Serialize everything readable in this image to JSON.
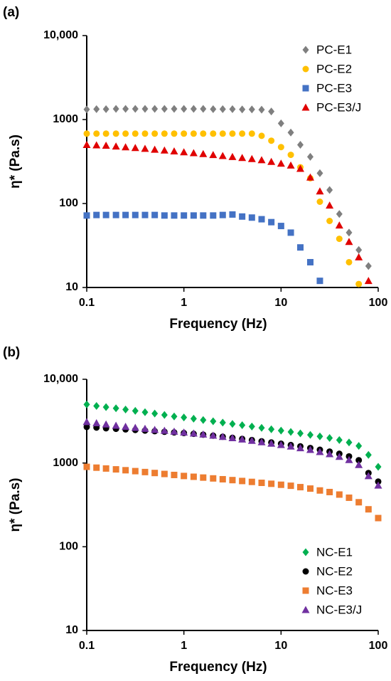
{
  "chart_data": [
    {
      "type": "scatter",
      "panel_label": "(a)",
      "xlabel": "Frequency (Hz)",
      "ylabel": "η* (Pa.s)",
      "xscale": "log",
      "yscale": "log",
      "xlim": [
        0.1,
        100
      ],
      "ylim": [
        10,
        10000
      ],
      "xticks": [
        0.1,
        1,
        10,
        100
      ],
      "yticks": [
        10,
        100,
        1000,
        {
          "value": 10000,
          "label": "10,000"
        }
      ],
      "legend": "upper right",
      "series": [
        {
          "name": "PC-E1",
          "color": "#7f7f7f",
          "marker": "diamond",
          "x": [
            0.1,
            0.126,
            0.158,
            0.2,
            0.251,
            0.316,
            0.398,
            0.501,
            0.631,
            0.794,
            1,
            1.26,
            1.58,
            2,
            2.51,
            3.16,
            3.98,
            5.01,
            6.31,
            7.94,
            10,
            12.6,
            15.8,
            20,
            25.1,
            31.6,
            39.8,
            50.1,
            63.1,
            79.4
          ],
          "values": [
            1320,
            1330,
            1330,
            1340,
            1340,
            1340,
            1340,
            1340,
            1340,
            1340,
            1340,
            1340,
            1340,
            1330,
            1330,
            1330,
            1320,
            1320,
            1310,
            1250,
            900,
            700,
            500,
            360,
            230,
            145,
            75,
            45,
            28,
            18
          ]
        },
        {
          "name": "PC-E2",
          "color": "#ffc000",
          "marker": "circle",
          "x": [
            0.1,
            0.126,
            0.158,
            0.2,
            0.251,
            0.316,
            0.398,
            0.501,
            0.631,
            0.794,
            1,
            1.26,
            1.58,
            2,
            2.51,
            3.16,
            3.98,
            5.01,
            6.31,
            7.94,
            10,
            12.6,
            15.8,
            20,
            25.1,
            31.6,
            39.8,
            50.1,
            63.1
          ],
          "values": [
            680,
            680,
            680,
            680,
            680,
            680,
            680,
            680,
            680,
            680,
            680,
            680,
            680,
            680,
            680,
            680,
            680,
            680,
            640,
            560,
            470,
            380,
            270,
            200,
            105,
            62,
            38,
            20,
            11
          ]
        },
        {
          "name": "PC-E3",
          "color": "#4472c4",
          "marker": "square",
          "x": [
            0.1,
            0.126,
            0.158,
            0.2,
            0.251,
            0.316,
            0.398,
            0.501,
            0.631,
            0.794,
            1,
            1.26,
            1.58,
            2,
            2.51,
            3.16,
            3.98,
            5.01,
            6.31,
            7.94,
            10,
            12.6,
            15.8,
            20,
            25.1
          ],
          "values": [
            72,
            73,
            73,
            73,
            73,
            73,
            73,
            73,
            72,
            72,
            72,
            72,
            72,
            72,
            73,
            74,
            70,
            68,
            65,
            60,
            54,
            45,
            30,
            20,
            12
          ]
        },
        {
          "name": "PC-E3/J",
          "color": "#e00000",
          "marker": "triangle",
          "x": [
            0.1,
            0.126,
            0.158,
            0.2,
            0.251,
            0.316,
            0.398,
            0.501,
            0.631,
            0.794,
            1,
            1.26,
            1.58,
            2,
            2.51,
            3.16,
            3.98,
            5.01,
            6.31,
            7.94,
            10,
            12.6,
            15.8,
            20,
            25.1,
            31.6,
            39.8,
            50.1,
            63.1,
            79.4
          ],
          "values": [
            500,
            495,
            490,
            480,
            470,
            460,
            450,
            440,
            430,
            420,
            410,
            400,
            390,
            380,
            370,
            360,
            350,
            340,
            330,
            315,
            300,
            285,
            260,
            205,
            140,
            95,
            55,
            35,
            23,
            12
          ]
        }
      ]
    },
    {
      "type": "scatter",
      "panel_label": "(b)",
      "xlabel": "Frequency (Hz)",
      "ylabel": "η* (Pa.s)",
      "xscale": "log",
      "yscale": "log",
      "xlim": [
        0.1,
        100
      ],
      "ylim": [
        10,
        10000
      ],
      "xticks": [
        0.1,
        1,
        10,
        100
      ],
      "yticks": [
        10,
        100,
        1000,
        {
          "value": 10000,
          "label": "10,000"
        }
      ],
      "legend": "lower right",
      "series": [
        {
          "name": "NC-E1",
          "color": "#00b050",
          "marker": "diamond",
          "x": [
            0.1,
            0.126,
            0.158,
            0.2,
            0.251,
            0.316,
            0.398,
            0.501,
            0.631,
            0.794,
            1,
            1.26,
            1.58,
            2,
            2.51,
            3.16,
            3.98,
            5.01,
            6.31,
            7.94,
            10,
            12.6,
            15.8,
            20,
            25.1,
            31.6,
            39.8,
            50.1,
            63.1,
            79.4,
            100
          ],
          "values": [
            5000,
            4800,
            4650,
            4500,
            4350,
            4200,
            4050,
            3900,
            3750,
            3600,
            3500,
            3380,
            3260,
            3150,
            3040,
            2930,
            2830,
            2730,
            2630,
            2530,
            2440,
            2350,
            2260,
            2170,
            2080,
            1990,
            1880,
            1760,
            1600,
            1250,
            900
          ]
        },
        {
          "name": "NC-E2",
          "color": "#000000",
          "marker": "circle",
          "x": [
            0.1,
            0.126,
            0.158,
            0.2,
            0.251,
            0.316,
            0.398,
            0.501,
            0.631,
            0.794,
            1,
            1.26,
            1.58,
            2,
            2.51,
            3.16,
            3.98,
            5.01,
            6.31,
            7.94,
            10,
            12.6,
            15.8,
            20,
            25.1,
            31.6,
            39.8,
            50.1,
            63.1,
            79.4,
            100
          ],
          "values": [
            2700,
            2650,
            2600,
            2560,
            2520,
            2480,
            2440,
            2400,
            2360,
            2320,
            2280,
            2230,
            2180,
            2120,
            2060,
            2000,
            1940,
            1880,
            1820,
            1760,
            1700,
            1640,
            1580,
            1510,
            1440,
            1370,
            1290,
            1200,
            1080,
            760,
            600
          ]
        },
        {
          "name": "NC-E3",
          "color": "#ed7d31",
          "marker": "square",
          "x": [
            0.1,
            0.126,
            0.158,
            0.2,
            0.251,
            0.316,
            0.398,
            0.501,
            0.631,
            0.794,
            1,
            1.26,
            1.58,
            2,
            2.51,
            3.16,
            3.98,
            5.01,
            6.31,
            7.94,
            10,
            12.6,
            15.8,
            20,
            25.1,
            31.6,
            39.8,
            50.1,
            63.1,
            79.4,
            100
          ],
          "values": [
            900,
            880,
            860,
            840,
            820,
            800,
            780,
            760,
            740,
            720,
            700,
            685,
            670,
            655,
            640,
            625,
            610,
            595,
            580,
            565,
            550,
            535,
            515,
            495,
            470,
            450,
            420,
            385,
            340,
            280,
            220
          ]
        },
        {
          "name": "NC-E3/J",
          "color": "#7030a0",
          "marker": "triangle",
          "x": [
            0.1,
            0.126,
            0.158,
            0.2,
            0.251,
            0.316,
            0.398,
            0.501,
            0.631,
            0.794,
            1,
            1.26,
            1.58,
            2,
            2.51,
            3.16,
            3.98,
            5.01,
            6.31,
            7.94,
            10,
            12.6,
            15.8,
            20,
            25.1,
            31.6,
            39.8,
            50.1,
            63.1,
            79.4,
            100
          ],
          "values": [
            3100,
            3000,
            2900,
            2800,
            2720,
            2640,
            2570,
            2500,
            2440,
            2380,
            2320,
            2260,
            2200,
            2130,
            2060,
            1990,
            1920,
            1850,
            1780,
            1710,
            1650,
            1580,
            1510,
            1440,
            1360,
            1280,
            1190,
            1090,
            950,
            700,
            540
          ]
        }
      ]
    }
  ]
}
